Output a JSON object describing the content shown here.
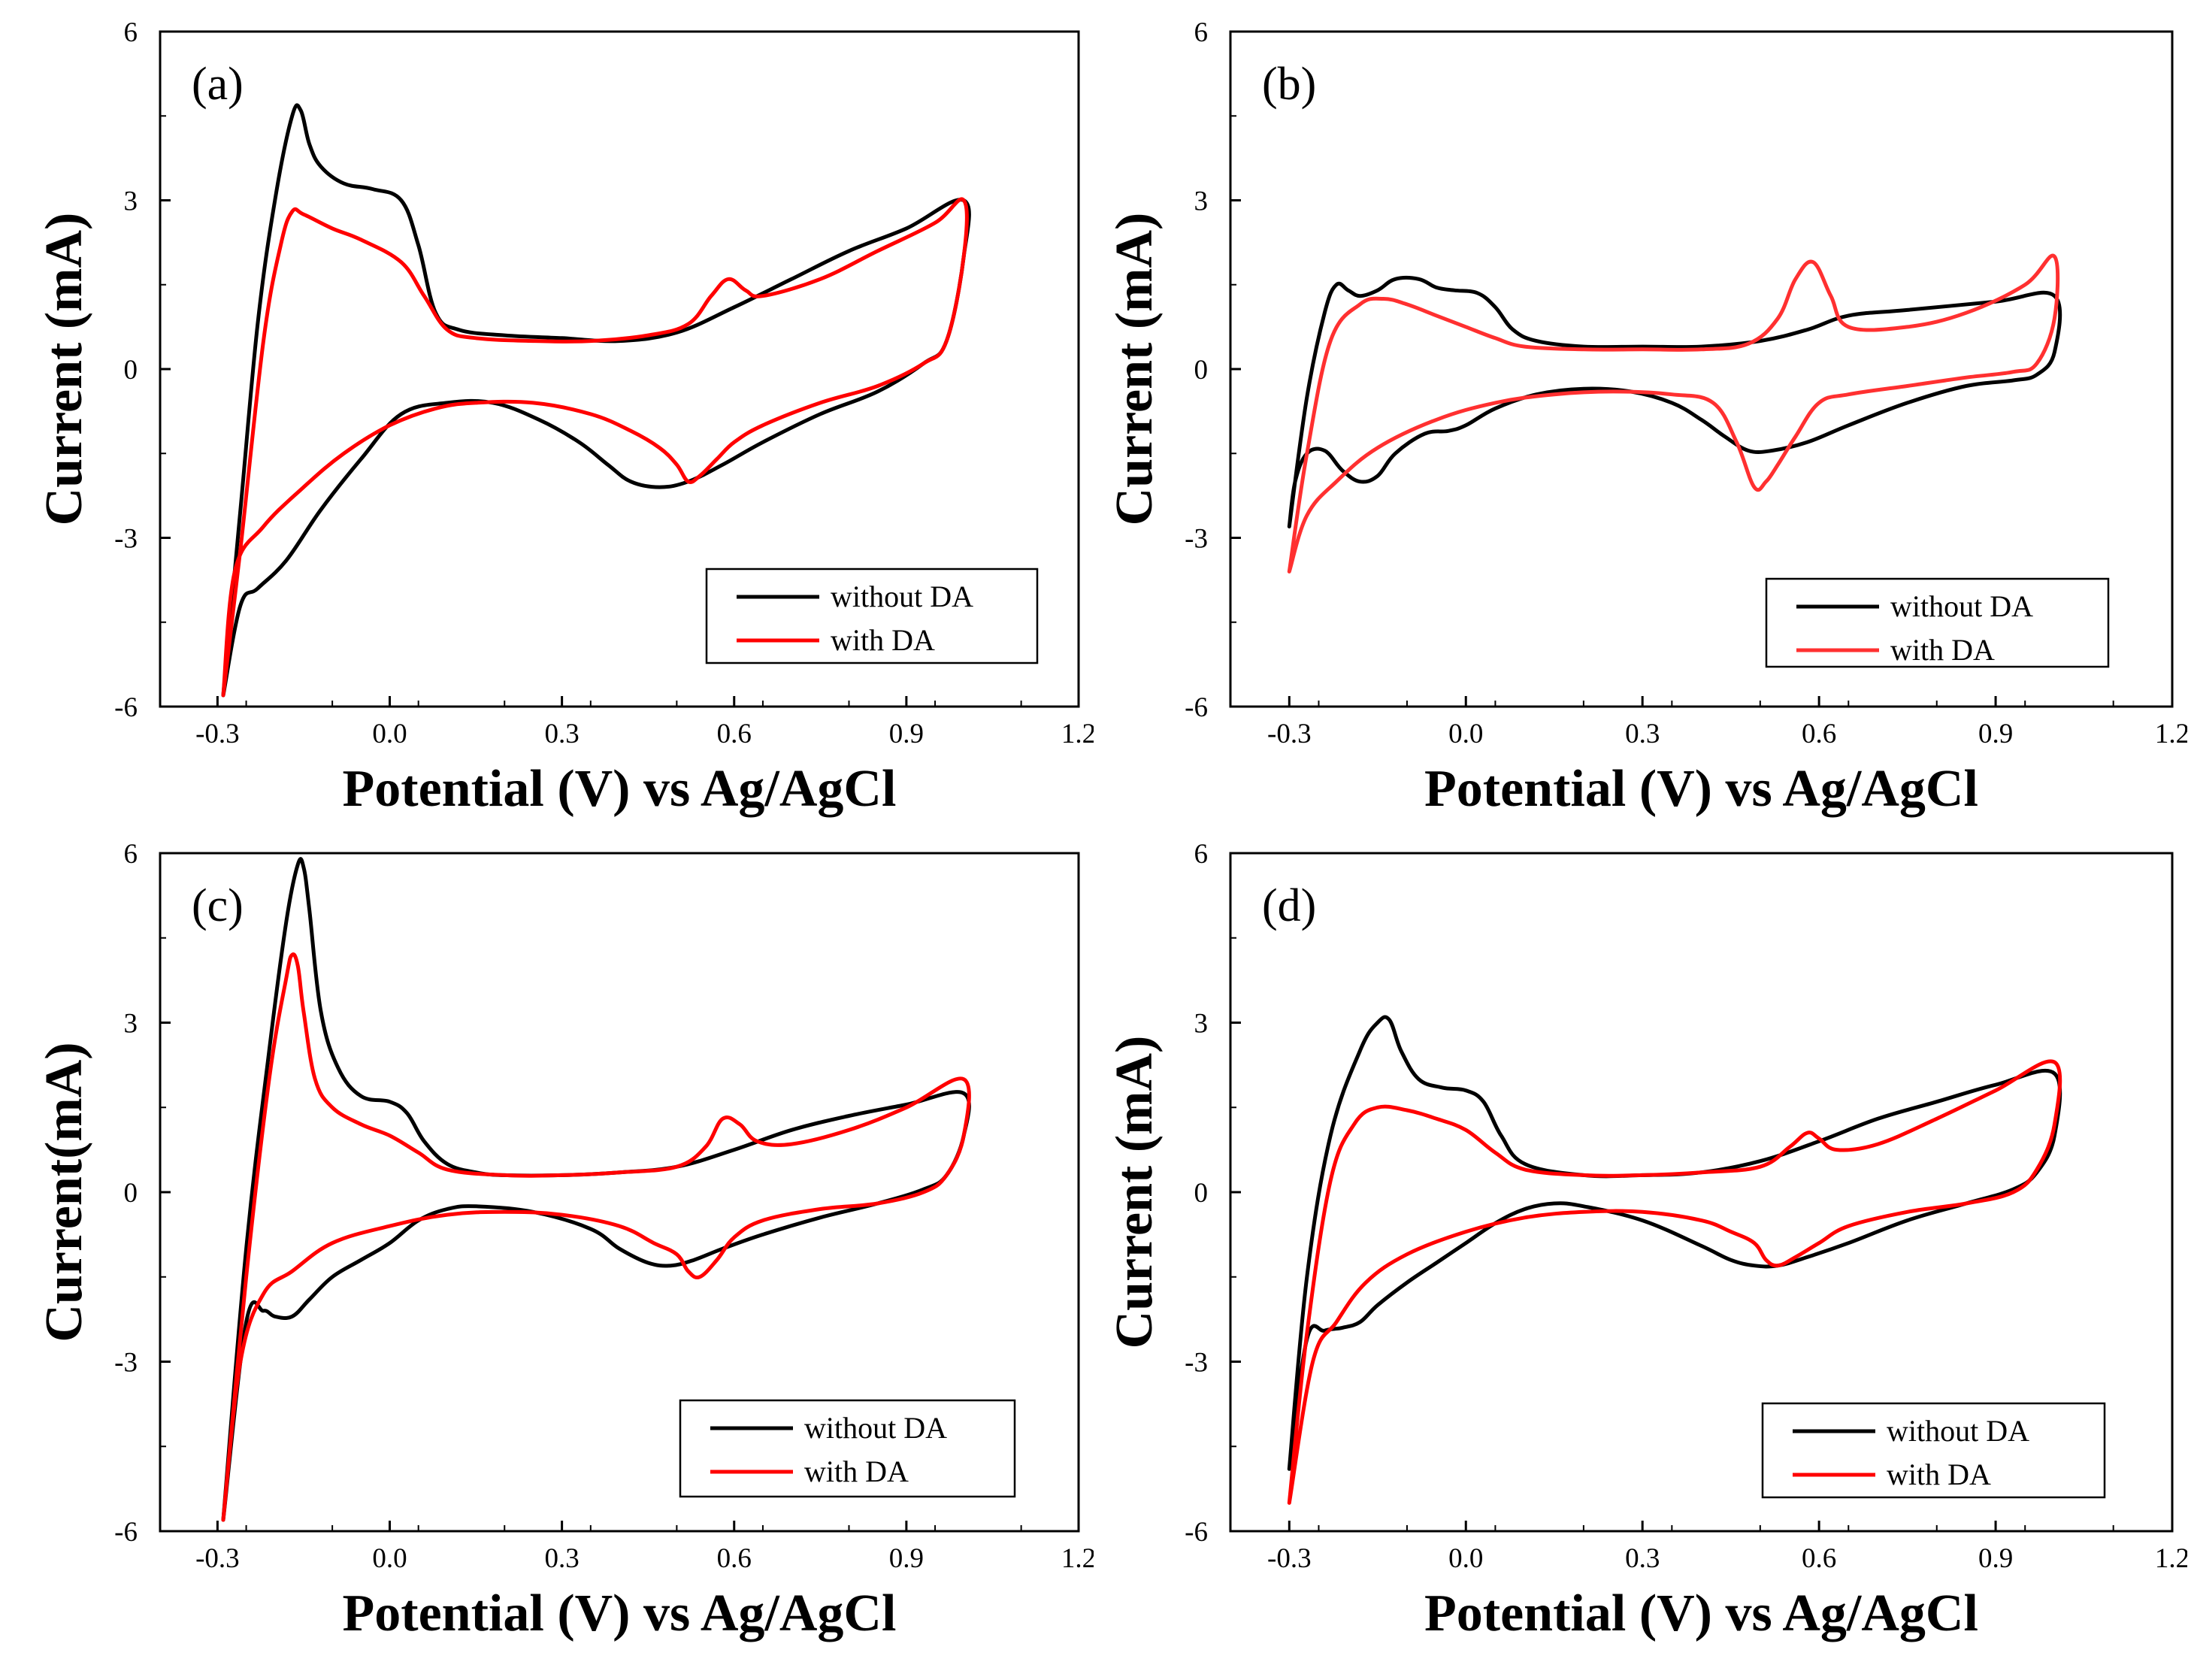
{
  "chart_data": [
    {
      "panel": "(a)",
      "type": "line",
      "xlabel": "Potential (V) vs Ag/AgCl",
      "ylabel": "Current (mA)",
      "xlim": [
        -0.4,
        1.2
      ],
      "ylim": [
        -6,
        6
      ],
      "xticks": [
        -0.3,
        0.0,
        0.3,
        0.6,
        0.9,
        1.2
      ],
      "xtick_labels": [
        "-0.3",
        "0.0",
        "0.3",
        "0.6",
        "0.9",
        "1.2"
      ],
      "yticks": [
        -6,
        -3,
        0,
        3,
        6
      ],
      "ytick_labels": [
        "-6",
        "-3",
        "0",
        "3",
        "6"
      ],
      "legend": [
        "without DA",
        "with DA"
      ],
      "legend_position": "bottom-right",
      "series": [
        {
          "name": "without DA",
          "color": "#000000",
          "x": [
            -0.29,
            -0.26,
            -0.23,
            -0.2,
            -0.17,
            -0.155,
            -0.14,
            -0.12,
            -0.08,
            -0.03,
            0.02,
            0.05,
            0.08,
            0.12,
            0.2,
            0.3,
            0.4,
            0.5,
            0.6,
            0.7,
            0.8,
            0.9,
            1.0,
            1.0,
            0.97,
            0.93,
            0.85,
            0.75,
            0.65,
            0.58,
            0.52,
            0.47,
            0.42,
            0.38,
            0.33,
            0.26,
            0.18,
            0.1,
            0.02,
            -0.05,
            -0.12,
            -0.18,
            -0.23,
            -0.26,
            -0.29
          ],
          "y": [
            -5.8,
            -2.5,
            0.8,
            3.0,
            4.5,
            4.6,
            4.0,
            3.6,
            3.3,
            3.2,
            3.0,
            2.2,
            1.0,
            0.7,
            0.6,
            0.55,
            0.5,
            0.65,
            1.1,
            1.6,
            2.1,
            2.5,
            3.0,
            2.0,
            0.5,
            0.1,
            -0.4,
            -0.8,
            -1.3,
            -1.7,
            -2.0,
            -2.1,
            -2.0,
            -1.7,
            -1.3,
            -0.9,
            -0.6,
            -0.6,
            -0.8,
            -1.6,
            -2.5,
            -3.4,
            -3.9,
            -4.2,
            -5.8
          ]
        },
        {
          "name": "with DA",
          "color": "#ff0000",
          "x": [
            -0.29,
            -0.26,
            -0.22,
            -0.19,
            -0.17,
            -0.15,
            -0.1,
            -0.05,
            0.02,
            0.06,
            0.1,
            0.15,
            0.25,
            0.35,
            0.45,
            0.52,
            0.56,
            0.59,
            0.62,
            0.65,
            0.75,
            0.85,
            0.95,
            1.0,
            1.0,
            0.97,
            0.93,
            0.85,
            0.75,
            0.65,
            0.6,
            0.57,
            0.54,
            0.52,
            0.5,
            0.47,
            0.42,
            0.35,
            0.25,
            0.15,
            0.08,
            0.0,
            -0.08,
            -0.15,
            -0.22,
            -0.27,
            -0.29
          ],
          "y": [
            -5.8,
            -3.2,
            0.5,
            2.2,
            2.8,
            2.75,
            2.5,
            2.3,
            1.9,
            1.3,
            0.7,
            0.55,
            0.5,
            0.5,
            0.6,
            0.8,
            1.3,
            1.6,
            1.4,
            1.3,
            1.6,
            2.1,
            2.6,
            3.0,
            2.0,
            0.5,
            0.1,
            -0.3,
            -0.6,
            -1.0,
            -1.3,
            -1.6,
            -1.9,
            -2.0,
            -1.7,
            -1.4,
            -1.1,
            -0.8,
            -0.6,
            -0.6,
            -0.7,
            -1.0,
            -1.5,
            -2.1,
            -2.8,
            -3.6,
            -5.8
          ]
        }
      ]
    },
    {
      "panel": "(b)",
      "type": "line",
      "xlabel": "Potential (V) vs Ag/AgCl",
      "ylabel": "Current (mA)",
      "xlim": [
        -0.4,
        1.2
      ],
      "ylim": [
        -6,
        6
      ],
      "xticks": [
        -0.3,
        0.0,
        0.3,
        0.6,
        0.9,
        1.2
      ],
      "xtick_labels": [
        "-0.3",
        "0.0",
        "0.3",
        "0.6",
        "0.9",
        "1.2"
      ],
      "yticks": [
        -6,
        -3,
        0,
        3,
        6
      ],
      "ytick_labels": [
        "-6",
        "-3",
        "0",
        "3",
        "6"
      ],
      "legend": [
        "without DA",
        "with DA"
      ],
      "legend_position": "bottom-right",
      "series": [
        {
          "name": "without DA",
          "color": "#000000",
          "x": [
            -0.3,
            -0.27,
            -0.24,
            -0.22,
            -0.2,
            -0.18,
            -0.15,
            -0.12,
            -0.08,
            -0.05,
            -0.02,
            0.02,
            0.05,
            0.08,
            0.12,
            0.2,
            0.3,
            0.4,
            0.5,
            0.58,
            0.65,
            0.75,
            0.9,
            1.0,
            1.0,
            0.97,
            0.93,
            0.85,
            0.75,
            0.65,
            0.58,
            0.52,
            0.48,
            0.44,
            0.4,
            0.35,
            0.28,
            0.2,
            0.12,
            0.05,
            0.0,
            -0.03,
            -0.07,
            -0.12,
            -0.15,
            -0.18,
            -0.21,
            -0.24,
            -0.27,
            -0.29,
            -0.3
          ],
          "y": [
            -2.8,
            -0.5,
            1.0,
            1.5,
            1.4,
            1.3,
            1.4,
            1.6,
            1.6,
            1.45,
            1.4,
            1.35,
            1.1,
            0.7,
            0.5,
            0.4,
            0.4,
            0.4,
            0.5,
            0.7,
            0.95,
            1.05,
            1.2,
            1.3,
            0.3,
            -0.1,
            -0.2,
            -0.3,
            -0.6,
            -1.0,
            -1.3,
            -1.45,
            -1.45,
            -1.2,
            -0.9,
            -0.6,
            -0.4,
            -0.35,
            -0.45,
            -0.7,
            -1.0,
            -1.1,
            -1.15,
            -1.5,
            -1.9,
            -2.0,
            -1.8,
            -1.45,
            -1.5,
            -2.0,
            -2.8
          ]
        },
        {
          "name": "with DA",
          "color": "#ff3030",
          "x": [
            -0.3,
            -0.27,
            -0.23,
            -0.18,
            -0.14,
            -0.1,
            -0.05,
            0.0,
            0.05,
            0.1,
            0.2,
            0.3,
            0.4,
            0.48,
            0.53,
            0.56,
            0.59,
            0.62,
            0.65,
            0.75,
            0.85,
            0.95,
            1.0,
            1.0,
            0.97,
            0.93,
            0.85,
            0.75,
            0.65,
            0.6,
            0.56,
            0.53,
            0.51,
            0.49,
            0.46,
            0.42,
            0.35,
            0.25,
            0.15,
            0.05,
            -0.05,
            -0.15,
            -0.22,
            -0.27,
            -0.3
          ],
          "y": [
            -3.6,
            -1.5,
            0.5,
            1.15,
            1.25,
            1.15,
            0.95,
            0.75,
            0.55,
            0.4,
            0.35,
            0.35,
            0.35,
            0.45,
            0.9,
            1.6,
            1.9,
            1.3,
            0.75,
            0.75,
            1.0,
            1.5,
            2.0,
            0.9,
            0.1,
            -0.05,
            -0.15,
            -0.3,
            -0.45,
            -0.6,
            -1.2,
            -1.7,
            -2.0,
            -2.1,
            -1.3,
            -0.6,
            -0.45,
            -0.4,
            -0.45,
            -0.6,
            -0.9,
            -1.4,
            -2.0,
            -2.6,
            -3.6
          ]
        }
      ]
    },
    {
      "panel": "(c)",
      "type": "line",
      "xlabel": "Potential (V) vs Ag/AgCl",
      "ylabel": "Current(mA)",
      "xlim": [
        -0.4,
        1.2
      ],
      "ylim": [
        -6,
        6
      ],
      "xticks": [
        -0.3,
        0.0,
        0.3,
        0.6,
        0.9,
        1.2
      ],
      "xtick_labels": [
        "-0.3",
        "0.0",
        "0.3",
        "0.6",
        "0.9",
        "1.2"
      ],
      "yticks": [
        -6,
        -3,
        0,
        3,
        6
      ],
      "ytick_labels": [
        "-6",
        "-3",
        "0",
        "3",
        "6"
      ],
      "legend": [
        "without DA",
        "with DA"
      ],
      "legend_position": "bottom-right",
      "series": [
        {
          "name": "without DA",
          "color": "#000000",
          "x": [
            -0.29,
            -0.25,
            -0.21,
            -0.18,
            -0.16,
            -0.15,
            -0.14,
            -0.12,
            -0.09,
            -0.05,
            0.0,
            0.03,
            0.06,
            0.1,
            0.15,
            0.2,
            0.3,
            0.4,
            0.5,
            0.6,
            0.7,
            0.8,
            0.9,
            1.0,
            1.0,
            0.97,
            0.93,
            0.85,
            0.75,
            0.65,
            0.58,
            0.53,
            0.49,
            0.45,
            0.4,
            0.35,
            0.25,
            0.15,
            0.1,
            0.05,
            0.0,
            -0.05,
            -0.1,
            -0.14,
            -0.17,
            -0.2,
            -0.22,
            -0.25,
            -0.29
          ],
          "y": [
            -5.8,
            -1.0,
            2.5,
            4.8,
            5.8,
            5.75,
            5.0,
            3.2,
            2.2,
            1.7,
            1.6,
            1.4,
            0.9,
            0.5,
            0.35,
            0.3,
            0.3,
            0.35,
            0.45,
            0.75,
            1.1,
            1.35,
            1.55,
            1.75,
            1.0,
            0.3,
            0.05,
            -0.2,
            -0.45,
            -0.75,
            -1.0,
            -1.2,
            -1.3,
            -1.25,
            -1.0,
            -0.65,
            -0.35,
            -0.25,
            -0.3,
            -0.5,
            -0.9,
            -1.2,
            -1.5,
            -1.9,
            -2.2,
            -2.2,
            -2.1,
            -2.3,
            -5.8
          ]
        },
        {
          "name": "with DA",
          "color": "#ff0000",
          "x": [
            -0.29,
            -0.25,
            -0.21,
            -0.18,
            -0.17,
            -0.16,
            -0.15,
            -0.13,
            -0.1,
            -0.05,
            0.0,
            0.05,
            0.1,
            0.2,
            0.3,
            0.4,
            0.5,
            0.55,
            0.58,
            0.61,
            0.64,
            0.7,
            0.8,
            0.9,
            1.0,
            1.0,
            0.97,
            0.93,
            0.85,
            0.75,
            0.65,
            0.6,
            0.57,
            0.54,
            0.52,
            0.5,
            0.46,
            0.4,
            0.3,
            0.2,
            0.1,
            0.0,
            -0.1,
            -0.17,
            -0.22,
            -0.26,
            -0.29
          ],
          "y": [
            -5.8,
            -1.5,
            2.0,
            3.8,
            4.2,
            4.0,
            3.2,
            2.0,
            1.5,
            1.2,
            1.0,
            0.7,
            0.4,
            0.3,
            0.3,
            0.35,
            0.45,
            0.8,
            1.3,
            1.2,
            0.9,
            0.85,
            1.1,
            1.5,
            2.0,
            1.0,
            0.3,
            0.0,
            -0.2,
            -0.3,
            -0.5,
            -0.8,
            -1.2,
            -1.5,
            -1.4,
            -1.1,
            -0.9,
            -0.6,
            -0.4,
            -0.35,
            -0.4,
            -0.6,
            -0.9,
            -1.4,
            -1.8,
            -3.0,
            -5.8
          ]
        }
      ]
    },
    {
      "panel": "(d)",
      "type": "line",
      "xlabel": "Potential (V) vs Ag/AgCl",
      "ylabel": "Current (mA)",
      "xlim": [
        -0.4,
        1.2
      ],
      "ylim": [
        -6,
        6
      ],
      "xticks": [
        -0.3,
        0.0,
        0.3,
        0.6,
        0.9,
        1.2
      ],
      "xtick_labels": [
        "-0.3",
        "0.0",
        "0.3",
        "0.6",
        "0.9",
        "1.2"
      ],
      "yticks": [
        -6,
        -3,
        0,
        3,
        6
      ],
      "ytick_labels": [
        "-6",
        "-3",
        "0",
        "3",
        "6"
      ],
      "legend": [
        "without DA",
        "with DA"
      ],
      "legend_position": "bottom-right",
      "series": [
        {
          "name": "without DA",
          "color": "#000000",
          "x": [
            -0.3,
            -0.27,
            -0.23,
            -0.18,
            -0.15,
            -0.13,
            -0.11,
            -0.08,
            -0.04,
            0.0,
            0.03,
            0.06,
            0.1,
            0.2,
            0.3,
            0.4,
            0.5,
            0.6,
            0.7,
            0.8,
            0.9,
            1.0,
            1.0,
            0.97,
            0.93,
            0.85,
            0.75,
            0.65,
            0.58,
            0.53,
            0.49,
            0.45,
            0.4,
            0.3,
            0.2,
            0.15,
            0.1,
            0.05,
            0.0,
            -0.05,
            -0.1,
            -0.15,
            -0.18,
            -0.21,
            -0.24,
            -0.27,
            -0.3
          ],
          "y": [
            -4.9,
            -1.5,
            1.0,
            2.5,
            3.0,
            3.05,
            2.5,
            2.0,
            1.85,
            1.8,
            1.6,
            1.0,
            0.5,
            0.3,
            0.3,
            0.35,
            0.55,
            0.9,
            1.3,
            1.6,
            1.9,
            2.1,
            1.0,
            0.35,
            0.05,
            -0.2,
            -0.5,
            -0.9,
            -1.15,
            -1.3,
            -1.3,
            -1.2,
            -0.95,
            -0.5,
            -0.25,
            -0.2,
            -0.3,
            -0.55,
            -0.9,
            -1.25,
            -1.6,
            -2.0,
            -2.3,
            -2.4,
            -2.45,
            -2.6,
            -4.9
          ]
        },
        {
          "name": "with DA",
          "color": "#ff0000",
          "x": [
            -0.3,
            -0.27,
            -0.23,
            -0.19,
            -0.15,
            -0.1,
            -0.05,
            0.0,
            0.05,
            0.1,
            0.2,
            0.3,
            0.4,
            0.5,
            0.55,
            0.58,
            0.6,
            0.63,
            0.7,
            0.8,
            0.9,
            1.0,
            1.0,
            0.97,
            0.93,
            0.85,
            0.75,
            0.65,
            0.6,
            0.56,
            0.53,
            0.51,
            0.49,
            0.45,
            0.4,
            0.3,
            0.2,
            0.1,
            0.0,
            -0.1,
            -0.17,
            -0.22,
            -0.26,
            -0.3
          ],
          "y": [
            -5.5,
            -2.5,
            0.2,
            1.2,
            1.5,
            1.45,
            1.3,
            1.1,
            0.7,
            0.4,
            0.3,
            0.3,
            0.35,
            0.45,
            0.8,
            1.05,
            0.95,
            0.75,
            0.85,
            1.3,
            1.8,
            2.3,
            1.2,
            0.4,
            0.0,
            -0.2,
            -0.35,
            -0.6,
            -0.9,
            -1.15,
            -1.3,
            -1.2,
            -0.9,
            -0.7,
            -0.5,
            -0.35,
            -0.35,
            -0.45,
            -0.7,
            -1.1,
            -1.6,
            -2.3,
            -3.0,
            -5.5
          ]
        }
      ]
    }
  ]
}
